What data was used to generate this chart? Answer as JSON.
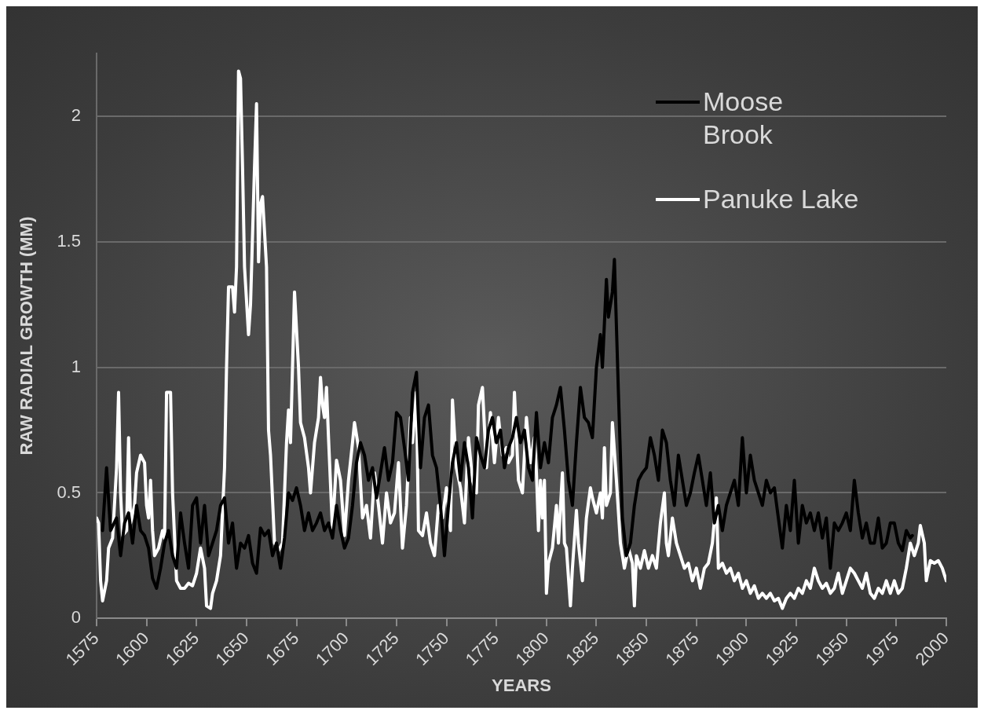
{
  "chart_data": {
    "type": "line",
    "xlabel": "YEARS",
    "ylabel": "RAW RADIAL GROWTH (MM)",
    "xlim": [
      1575,
      2000
    ],
    "xticks": [
      1575,
      1600,
      1625,
      1650,
      1675,
      1700,
      1725,
      1750,
      1775,
      1800,
      1825,
      1850,
      1875,
      1900,
      1925,
      1950,
      1975,
      2000
    ],
    "ylim": [
      0,
      2.25
    ],
    "yticks": [
      0,
      0.5,
      1,
      1.5,
      2
    ],
    "grid": "y",
    "legend": "top right",
    "marker": "none",
    "line_style": "solid",
    "series": [
      {
        "name": "Moose Brook",
        "color": "#000000",
        "x": [
          1578,
          1580,
          1582,
          1585,
          1587,
          1589,
          1591,
          1593,
          1595,
          1597,
          1599,
          1601,
          1603,
          1605,
          1607,
          1609,
          1611,
          1613,
          1615,
          1617,
          1619,
          1621,
          1623,
          1625,
          1627,
          1629,
          1631,
          1633,
          1635,
          1637,
          1639,
          1641,
          1643,
          1645,
          1647,
          1649,
          1651,
          1653,
          1655,
          1657,
          1659,
          1661,
          1663,
          1665,
          1667,
          1669,
          1671,
          1673,
          1675,
          1677,
          1679,
          1681,
          1683,
          1685,
          1687,
          1689,
          1691,
          1693,
          1695,
          1697,
          1699,
          1701,
          1703,
          1705,
          1707,
          1709,
          1711,
          1713,
          1715,
          1717,
          1719,
          1721,
          1723,
          1725,
          1727,
          1729,
          1731,
          1733,
          1735,
          1737,
          1739,
          1741,
          1743,
          1745,
          1747,
          1749,
          1751,
          1753,
          1755,
          1757,
          1759,
          1761,
          1763,
          1765,
          1767,
          1769,
          1771,
          1773,
          1775,
          1777,
          1779,
          1781,
          1783,
          1785,
          1787,
          1789,
          1791,
          1793,
          1795,
          1797,
          1799,
          1801,
          1803,
          1805,
          1807,
          1809,
          1811,
          1813,
          1815,
          1817,
          1819,
          1821,
          1823,
          1825,
          1827,
          1828,
          1830,
          1831,
          1833,
          1834,
          1836,
          1838,
          1840,
          1842,
          1844,
          1846,
          1848,
          1850,
          1852,
          1854,
          1856,
          1858,
          1860,
          1862,
          1864,
          1866,
          1868,
          1870,
          1872,
          1874,
          1876,
          1878,
          1880,
          1882,
          1884,
          1886,
          1888,
          1890,
          1892,
          1894,
          1896,
          1898,
          1900,
          1902,
          1904,
          1906,
          1908,
          1910,
          1912,
          1914,
          1916,
          1918,
          1920,
          1922,
          1924,
          1926,
          1928,
          1930,
          1932,
          1934,
          1936,
          1938,
          1940,
          1942,
          1944,
          1946,
          1948,
          1950,
          1952,
          1954,
          1956,
          1958,
          1960,
          1962,
          1964,
          1966,
          1968,
          1970,
          1972,
          1974,
          1976,
          1978,
          1980,
          1982,
          1983
        ],
        "values": [
          0.35,
          0.6,
          0.35,
          0.4,
          0.25,
          0.38,
          0.42,
          0.3,
          0.45,
          0.35,
          0.33,
          0.28,
          0.16,
          0.12,
          0.2,
          0.3,
          0.35,
          0.25,
          0.2,
          0.42,
          0.3,
          0.2,
          0.45,
          0.48,
          0.3,
          0.45,
          0.25,
          0.3,
          0.35,
          0.45,
          0.48,
          0.3,
          0.38,
          0.2,
          0.3,
          0.28,
          0.33,
          0.22,
          0.18,
          0.36,
          0.33,
          0.35,
          0.25,
          0.3,
          0.2,
          0.32,
          0.5,
          0.47,
          0.52,
          0.45,
          0.35,
          0.42,
          0.35,
          0.38,
          0.42,
          0.35,
          0.38,
          0.32,
          0.45,
          0.35,
          0.28,
          0.32,
          0.45,
          0.62,
          0.7,
          0.65,
          0.55,
          0.6,
          0.48,
          0.58,
          0.68,
          0.55,
          0.62,
          0.82,
          0.8,
          0.68,
          0.55,
          0.9,
          0.98,
          0.6,
          0.8,
          0.85,
          0.65,
          0.6,
          0.45,
          0.25,
          0.45,
          0.62,
          0.7,
          0.55,
          0.7,
          0.6,
          0.4,
          0.72,
          0.65,
          0.6,
          0.75,
          0.8,
          0.7,
          0.75,
          0.6,
          0.68,
          0.72,
          0.8,
          0.7,
          0.75,
          0.6,
          0.55,
          0.82,
          0.6,
          0.7,
          0.62,
          0.8,
          0.85,
          0.92,
          0.75,
          0.55,
          0.45,
          0.7,
          0.92,
          0.8,
          0.78,
          0.72,
          1.0,
          1.13,
          1.0,
          1.35,
          1.2,
          1.3,
          1.43,
          0.9,
          0.4,
          0.25,
          0.3,
          0.45,
          0.55,
          0.58,
          0.6,
          0.72,
          0.65,
          0.55,
          0.75,
          0.7,
          0.55,
          0.45,
          0.65,
          0.55,
          0.45,
          0.5,
          0.58,
          0.65,
          0.55,
          0.45,
          0.58,
          0.38,
          0.45,
          0.35,
          0.45,
          0.5,
          0.55,
          0.45,
          0.72,
          0.5,
          0.65,
          0.55,
          0.5,
          0.45,
          0.55,
          0.5,
          0.52,
          0.4,
          0.28,
          0.45,
          0.35,
          0.55,
          0.3,
          0.45,
          0.38,
          0.42,
          0.35,
          0.42,
          0.32,
          0.4,
          0.2,
          0.38,
          0.35,
          0.38,
          0.42,
          0.35,
          0.55,
          0.42,
          0.32,
          0.38,
          0.3,
          0.3,
          0.4,
          0.28,
          0.3,
          0.38,
          0.38,
          0.3,
          0.27,
          0.35,
          0.32,
          0.33
        ]
      },
      {
        "name": "Panuke Lake",
        "color": "#ffffff",
        "x": [
          1575,
          1576,
          1577,
          1578,
          1580,
          1581,
          1583,
          1585,
          1586,
          1587,
          1588,
          1590,
          1591,
          1592,
          1594,
          1595,
          1597,
          1599,
          1600,
          1601,
          1602,
          1603,
          1604,
          1606,
          1608,
          1609,
          1610,
          1612,
          1613,
          1615,
          1617,
          1619,
          1621,
          1623,
          1625,
          1627,
          1629,
          1630,
          1632,
          1633,
          1635,
          1637,
          1639,
          1640,
          1641,
          1643,
          1644,
          1645,
          1646,
          1647,
          1648,
          1649,
          1651,
          1652,
          1654,
          1655,
          1656,
          1657,
          1658,
          1660,
          1661,
          1662,
          1664,
          1666,
          1668,
          1670,
          1671,
          1672,
          1673,
          1674,
          1676,
          1677,
          1679,
          1681,
          1682,
          1684,
          1686,
          1687,
          1688,
          1689,
          1690,
          1691,
          1693,
          1695,
          1697,
          1699,
          1701,
          1703,
          1704,
          1706,
          1708,
          1710,
          1712,
          1714,
          1716,
          1718,
          1720,
          1722,
          1724,
          1726,
          1728,
          1730,
          1732,
          1733,
          1735,
          1736,
          1738,
          1740,
          1742,
          1744,
          1746,
          1748,
          1750,
          1752,
          1753,
          1755,
          1757,
          1759,
          1761,
          1763,
          1765,
          1766,
          1768,
          1770,
          1772,
          1774,
          1776,
          1778,
          1780,
          1781,
          1783,
          1784,
          1786,
          1788,
          1790,
          1792,
          1794,
          1795,
          1796,
          1797,
          1798,
          1799,
          1800,
          1801,
          1803,
          1805,
          1806,
          1808,
          1809,
          1810,
          1812,
          1813,
          1815,
          1816,
          1818,
          1820,
          1822,
          1823,
          1825,
          1827,
          1828,
          1829,
          1830,
          1832,
          1833,
          1835,
          1837,
          1839,
          1841,
          1843,
          1844,
          1845,
          1847,
          1849,
          1851,
          1853,
          1855,
          1857,
          1859,
          1860,
          1861,
          1863,
          1865,
          1867,
          1869,
          1871,
          1873,
          1875,
          1877,
          1879,
          1881,
          1883,
          1885,
          1886,
          1888,
          1890,
          1892,
          1894,
          1896,
          1898,
          1900,
          1902,
          1904,
          1906,
          1908,
          1910,
          1912,
          1914,
          1916,
          1918,
          1920,
          1922,
          1924,
          1926,
          1928,
          1930,
          1932,
          1934,
          1936,
          1938,
          1940,
          1942,
          1944,
          1946,
          1948,
          1950,
          1952,
          1954,
          1956,
          1958,
          1960,
          1962,
          1964,
          1966,
          1968,
          1970,
          1972,
          1974,
          1976,
          1978,
          1980,
          1982,
          1984,
          1986,
          1987,
          1989,
          1990,
          1992,
          1994,
          1996,
          1998,
          2000
        ],
        "values": [
          0.4,
          0.38,
          0.15,
          0.07,
          0.15,
          0.28,
          0.32,
          0.6,
          0.9,
          0.5,
          0.33,
          0.35,
          0.72,
          0.38,
          0.45,
          0.58,
          0.65,
          0.62,
          0.45,
          0.4,
          0.55,
          0.35,
          0.25,
          0.28,
          0.35,
          0.32,
          0.9,
          0.9,
          0.5,
          0.15,
          0.12,
          0.12,
          0.14,
          0.13,
          0.18,
          0.28,
          0.2,
          0.05,
          0.04,
          0.1,
          0.15,
          0.25,
          0.6,
          1.0,
          1.32,
          1.32,
          1.22,
          1.4,
          2.18,
          2.15,
          1.8,
          1.4,
          1.13,
          1.25,
          1.8,
          2.05,
          1.42,
          1.65,
          1.68,
          1.4,
          0.75,
          0.65,
          0.3,
          0.27,
          0.3,
          0.7,
          0.83,
          0.7,
          1.0,
          1.3,
          1.0,
          0.78,
          0.72,
          0.6,
          0.5,
          0.7,
          0.8,
          0.96,
          0.85,
          0.8,
          0.92,
          0.72,
          0.35,
          0.63,
          0.55,
          0.33,
          0.55,
          0.7,
          0.78,
          0.68,
          0.4,
          0.45,
          0.32,
          0.58,
          0.45,
          0.3,
          0.5,
          0.38,
          0.42,
          0.62,
          0.28,
          0.45,
          0.8,
          0.7,
          0.9,
          0.35,
          0.33,
          0.42,
          0.3,
          0.25,
          0.45,
          0.4,
          0.52,
          0.35,
          0.87,
          0.6,
          0.52,
          0.38,
          0.72,
          0.55,
          0.5,
          0.85,
          0.92,
          0.6,
          0.82,
          0.62,
          0.8,
          0.65,
          0.68,
          0.62,
          0.65,
          0.9,
          0.55,
          0.5,
          0.8,
          0.62,
          0.72,
          0.58,
          0.35,
          0.55,
          0.4,
          0.55,
          0.1,
          0.22,
          0.28,
          0.45,
          0.3,
          0.58,
          0.3,
          0.28,
          0.05,
          0.2,
          0.43,
          0.3,
          0.15,
          0.4,
          0.52,
          0.48,
          0.42,
          0.5,
          0.4,
          0.68,
          0.45,
          0.5,
          0.78,
          0.55,
          0.3,
          0.2,
          0.28,
          0.22,
          0.05,
          0.25,
          0.2,
          0.27,
          0.2,
          0.25,
          0.2,
          0.38,
          0.5,
          0.3,
          0.25,
          0.4,
          0.3,
          0.25,
          0.2,
          0.22,
          0.15,
          0.2,
          0.12,
          0.2,
          0.22,
          0.3,
          0.48,
          0.2,
          0.22,
          0.18,
          0.2,
          0.15,
          0.18,
          0.12,
          0.15,
          0.1,
          0.13,
          0.08,
          0.1,
          0.08,
          0.1,
          0.07,
          0.08,
          0.04,
          0.08,
          0.1,
          0.08,
          0.12,
          0.1,
          0.15,
          0.12,
          0.2,
          0.15,
          0.12,
          0.14,
          0.1,
          0.12,
          0.18,
          0.1,
          0.15,
          0.2,
          0.18,
          0.15,
          0.12,
          0.18,
          0.1,
          0.08,
          0.12,
          0.1,
          0.15,
          0.1,
          0.15,
          0.1,
          0.12,
          0.2,
          0.3,
          0.25,
          0.3,
          0.37,
          0.3,
          0.15,
          0.23,
          0.22,
          0.23,
          0.2,
          0.15
        ]
      }
    ]
  }
}
